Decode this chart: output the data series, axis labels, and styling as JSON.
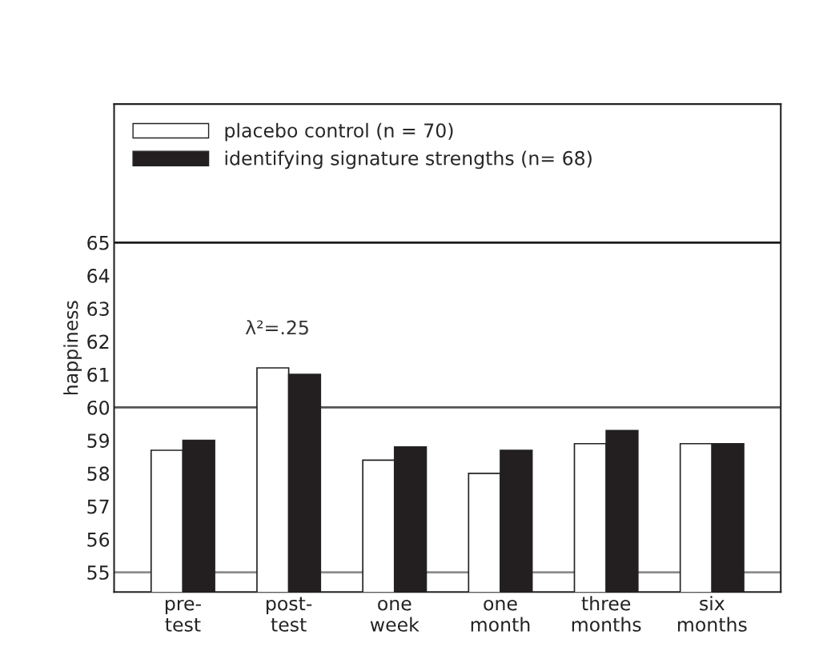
{
  "chart_data": {
    "type": "bar",
    "ylabel": "happiness",
    "categories": [
      "pre-\ntest",
      "post-\ntest",
      "one\nweek",
      "one\nmonth",
      "three\nmonths",
      "six\nmonths"
    ],
    "series": [
      {
        "name": "placebo control (n = 70)",
        "color": "#ffffff",
        "values": [
          58.7,
          61.2,
          58.4,
          58.0,
          58.9,
          58.9
        ]
      },
      {
        "name": "identifying signature strengths (n= 68)",
        "color": "#231f20",
        "values": [
          59.0,
          61.0,
          58.8,
          58.7,
          59.3,
          58.9
        ]
      }
    ],
    "ylim": [
      54.4,
      69.2
    ],
    "yticks": [
      55,
      56,
      57,
      58,
      59,
      60,
      61,
      62,
      63,
      64,
      65
    ],
    "ref_lines": [
      {
        "axis": "y",
        "value": 55,
        "color": "#8c8c8c"
      },
      {
        "axis": "y",
        "value": 60,
        "color": "#555555"
      },
      {
        "axis": "y",
        "value": 65,
        "color": "#1a1a1a"
      }
    ],
    "annotations": [
      "λ²=.25"
    ],
    "legend": "top left",
    "grid": false
  }
}
